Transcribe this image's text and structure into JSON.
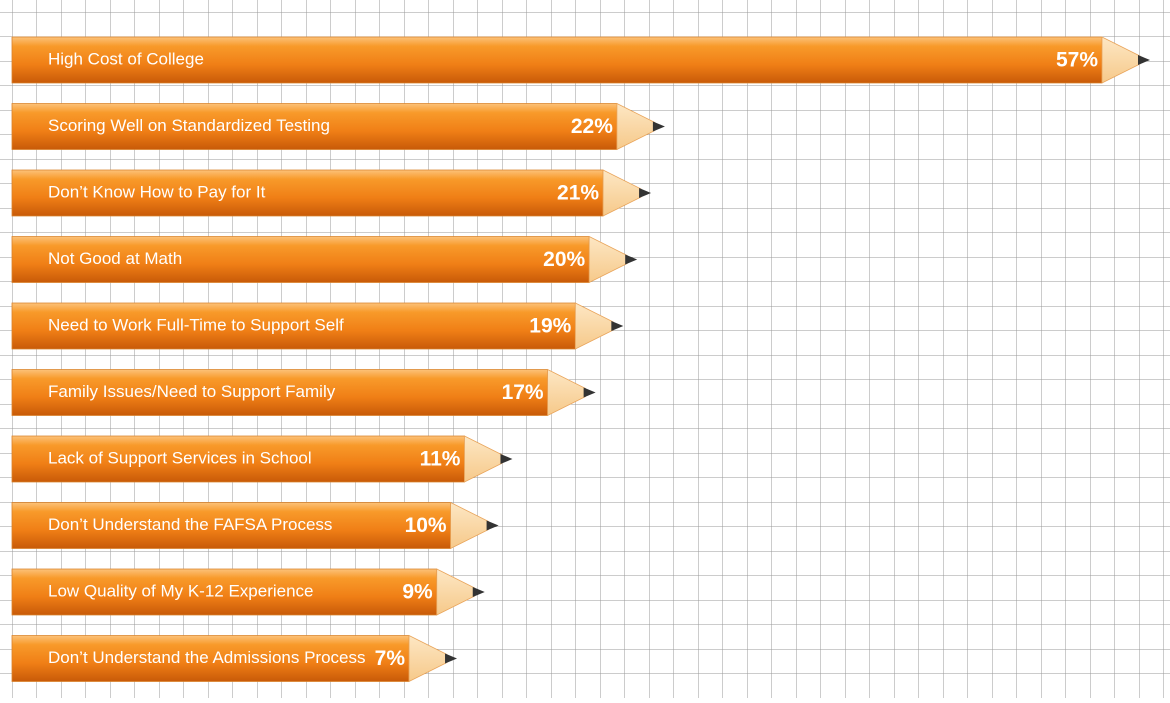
{
  "chart_data": {
    "type": "bar",
    "orientation": "horizontal",
    "categories": [
      "High Cost of College",
      "Scoring Well on Standardized Testing",
      "Don’t Know How to Pay for It",
      "Not Good at Math",
      "Need to Work Full-Time to Support Self",
      "Family Issues/Need to Support Family",
      "Lack of Support Services in School",
      "Don’t Understand the FAFSA Process",
      "Low Quality of My K-12 Experience",
      "Don’t Understand the Admissions Process"
    ],
    "values": [
      57,
      22,
      21,
      20,
      19,
      17,
      11,
      10,
      9,
      7
    ],
    "value_labels": [
      "57%",
      "22%",
      "21%",
      "20%",
      "19%",
      "17%",
      "11%",
      "10%",
      "9%",
      "7%"
    ],
    "color": "#f07f16"
  }
}
